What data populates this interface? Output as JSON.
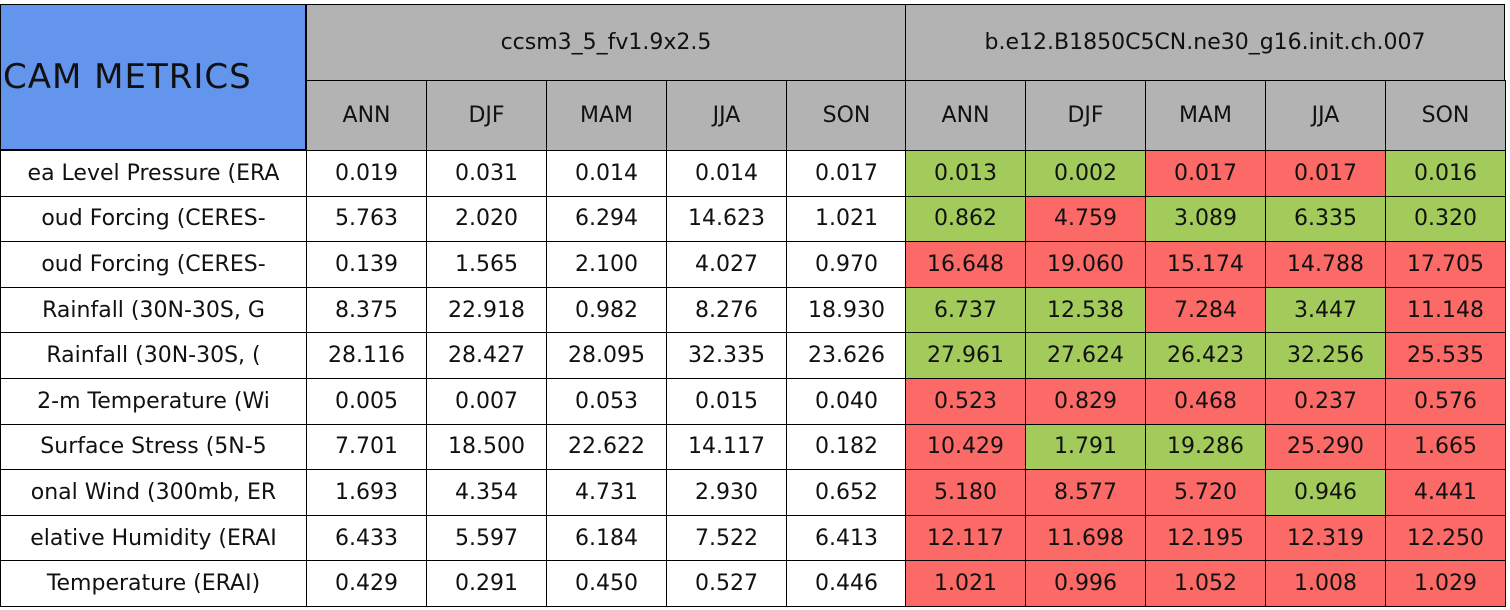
{
  "table": {
    "title": "CAM METRICS",
    "groups": [
      {
        "name": "ccsm3_5_fv1.9x2.5",
        "seasons": [
          "ANN",
          "DJF",
          "MAM",
          "JJA",
          "SON"
        ]
      },
      {
        "name": "b.e12.B1850C5CN.ne30_g16.init.ch.007",
        "seasons": [
          "ANN",
          "DJF",
          "MAM",
          "JJA",
          "SON"
        ]
      }
    ],
    "rows": [
      {
        "label": "ea Level Pressure (ERA",
        "values": [
          "0.019",
          "0.031",
          "0.014",
          "0.014",
          "0.017",
          "0.013",
          "0.002",
          "0.017",
          "0.017",
          "0.016"
        ],
        "colors": [
          "#fff",
          "#fff",
          "#fff",
          "#fff",
          "#fff",
          "#a2cb5c",
          "#a2cb5c",
          "#fb6a66",
          "#fb6a66",
          "#a2cb5c"
        ]
      },
      {
        "label": "oud Forcing (CERES-",
        "values": [
          "5.763",
          "2.020",
          "6.294",
          "14.623",
          "1.021",
          "0.862",
          "4.759",
          "3.089",
          "6.335",
          "0.320"
        ],
        "colors": [
          "#fff",
          "#fff",
          "#fff",
          "#fff",
          "#fff",
          "#a2cb5c",
          "#fb6a66",
          "#a2cb5c",
          "#a2cb5c",
          "#a2cb5c"
        ]
      },
      {
        "label": "oud Forcing (CERES-",
        "values": [
          "0.139",
          "1.565",
          "2.100",
          "4.027",
          "0.970",
          "16.648",
          "19.060",
          "15.174",
          "14.788",
          "17.705"
        ],
        "colors": [
          "#fff",
          "#fff",
          "#fff",
          "#fff",
          "#fff",
          "#fb6a66",
          "#fb6a66",
          "#fb6a66",
          "#fb6a66",
          "#fb6a66"
        ]
      },
      {
        "label": "Rainfall (30N-30S, G",
        "values": [
          "8.375",
          "22.918",
          "0.982",
          "8.276",
          "18.930",
          "6.737",
          "12.538",
          "7.284",
          "3.447",
          "11.148"
        ],
        "colors": [
          "#fff",
          "#fff",
          "#fff",
          "#fff",
          "#fff",
          "#a2cb5c",
          "#a2cb5c",
          "#fb6a66",
          "#a2cb5c",
          "#fb6a66"
        ]
      },
      {
        "label": "Rainfall (30N-30S, (",
        "values": [
          "28.116",
          "28.427",
          "28.095",
          "32.335",
          "23.626",
          "27.961",
          "27.624",
          "26.423",
          "32.256",
          "25.535"
        ],
        "colors": [
          "#fff",
          "#fff",
          "#fff",
          "#fff",
          "#fff",
          "#a2cb5c",
          "#a2cb5c",
          "#a2cb5c",
          "#a2cb5c",
          "#fb6a66"
        ]
      },
      {
        "label": "2-m Temperature (Wi",
        "values": [
          "0.005",
          "0.007",
          "0.053",
          "0.015",
          "0.040",
          "0.523",
          "0.829",
          "0.468",
          "0.237",
          "0.576"
        ],
        "colors": [
          "#fff",
          "#fff",
          "#fff",
          "#fff",
          "#fff",
          "#fb6a66",
          "#fb6a66",
          "#fb6a66",
          "#fb6a66",
          "#fb6a66"
        ]
      },
      {
        "label": "Surface Stress (5N-5",
        "values": [
          "7.701",
          "18.500",
          "22.622",
          "14.117",
          "0.182",
          "10.429",
          "1.791",
          "19.286",
          "25.290",
          "1.665"
        ],
        "colors": [
          "#fff",
          "#fff",
          "#fff",
          "#fff",
          "#fff",
          "#fb6a66",
          "#a2cb5c",
          "#a2cb5c",
          "#fb6a66",
          "#fb6a66"
        ]
      },
      {
        "label": "onal Wind (300mb, ER",
        "values": [
          "1.693",
          "4.354",
          "4.731",
          "2.930",
          "0.652",
          "5.180",
          "8.577",
          "5.720",
          "0.946",
          "4.441"
        ],
        "colors": [
          "#fff",
          "#fff",
          "#fff",
          "#fff",
          "#fff",
          "#fb6a66",
          "#fb6a66",
          "#fb6a66",
          "#a2cb5c",
          "#fb6a66"
        ]
      },
      {
        "label": "elative Humidity (ERAI",
        "values": [
          "6.433",
          "5.597",
          "6.184",
          "7.522",
          "6.413",
          "12.117",
          "11.698",
          "12.195",
          "12.319",
          "12.250"
        ],
        "colors": [
          "#fff",
          "#fff",
          "#fff",
          "#fff",
          "#fff",
          "#fb6a66",
          "#fb6a66",
          "#fb6a66",
          "#fb6a66",
          "#fb6a66"
        ]
      },
      {
        "label": "Temperature (ERAI)",
        "values": [
          "0.429",
          "0.291",
          "0.450",
          "0.527",
          "0.446",
          "1.021",
          "0.996",
          "1.052",
          "1.008",
          "1.029"
        ],
        "colors": [
          "#fff",
          "#fff",
          "#fff",
          "#fff",
          "#fff",
          "#fb6a66",
          "#fb6a66",
          "#fb6a66",
          "#fb6a66",
          "#fb6a66"
        ]
      }
    ]
  }
}
